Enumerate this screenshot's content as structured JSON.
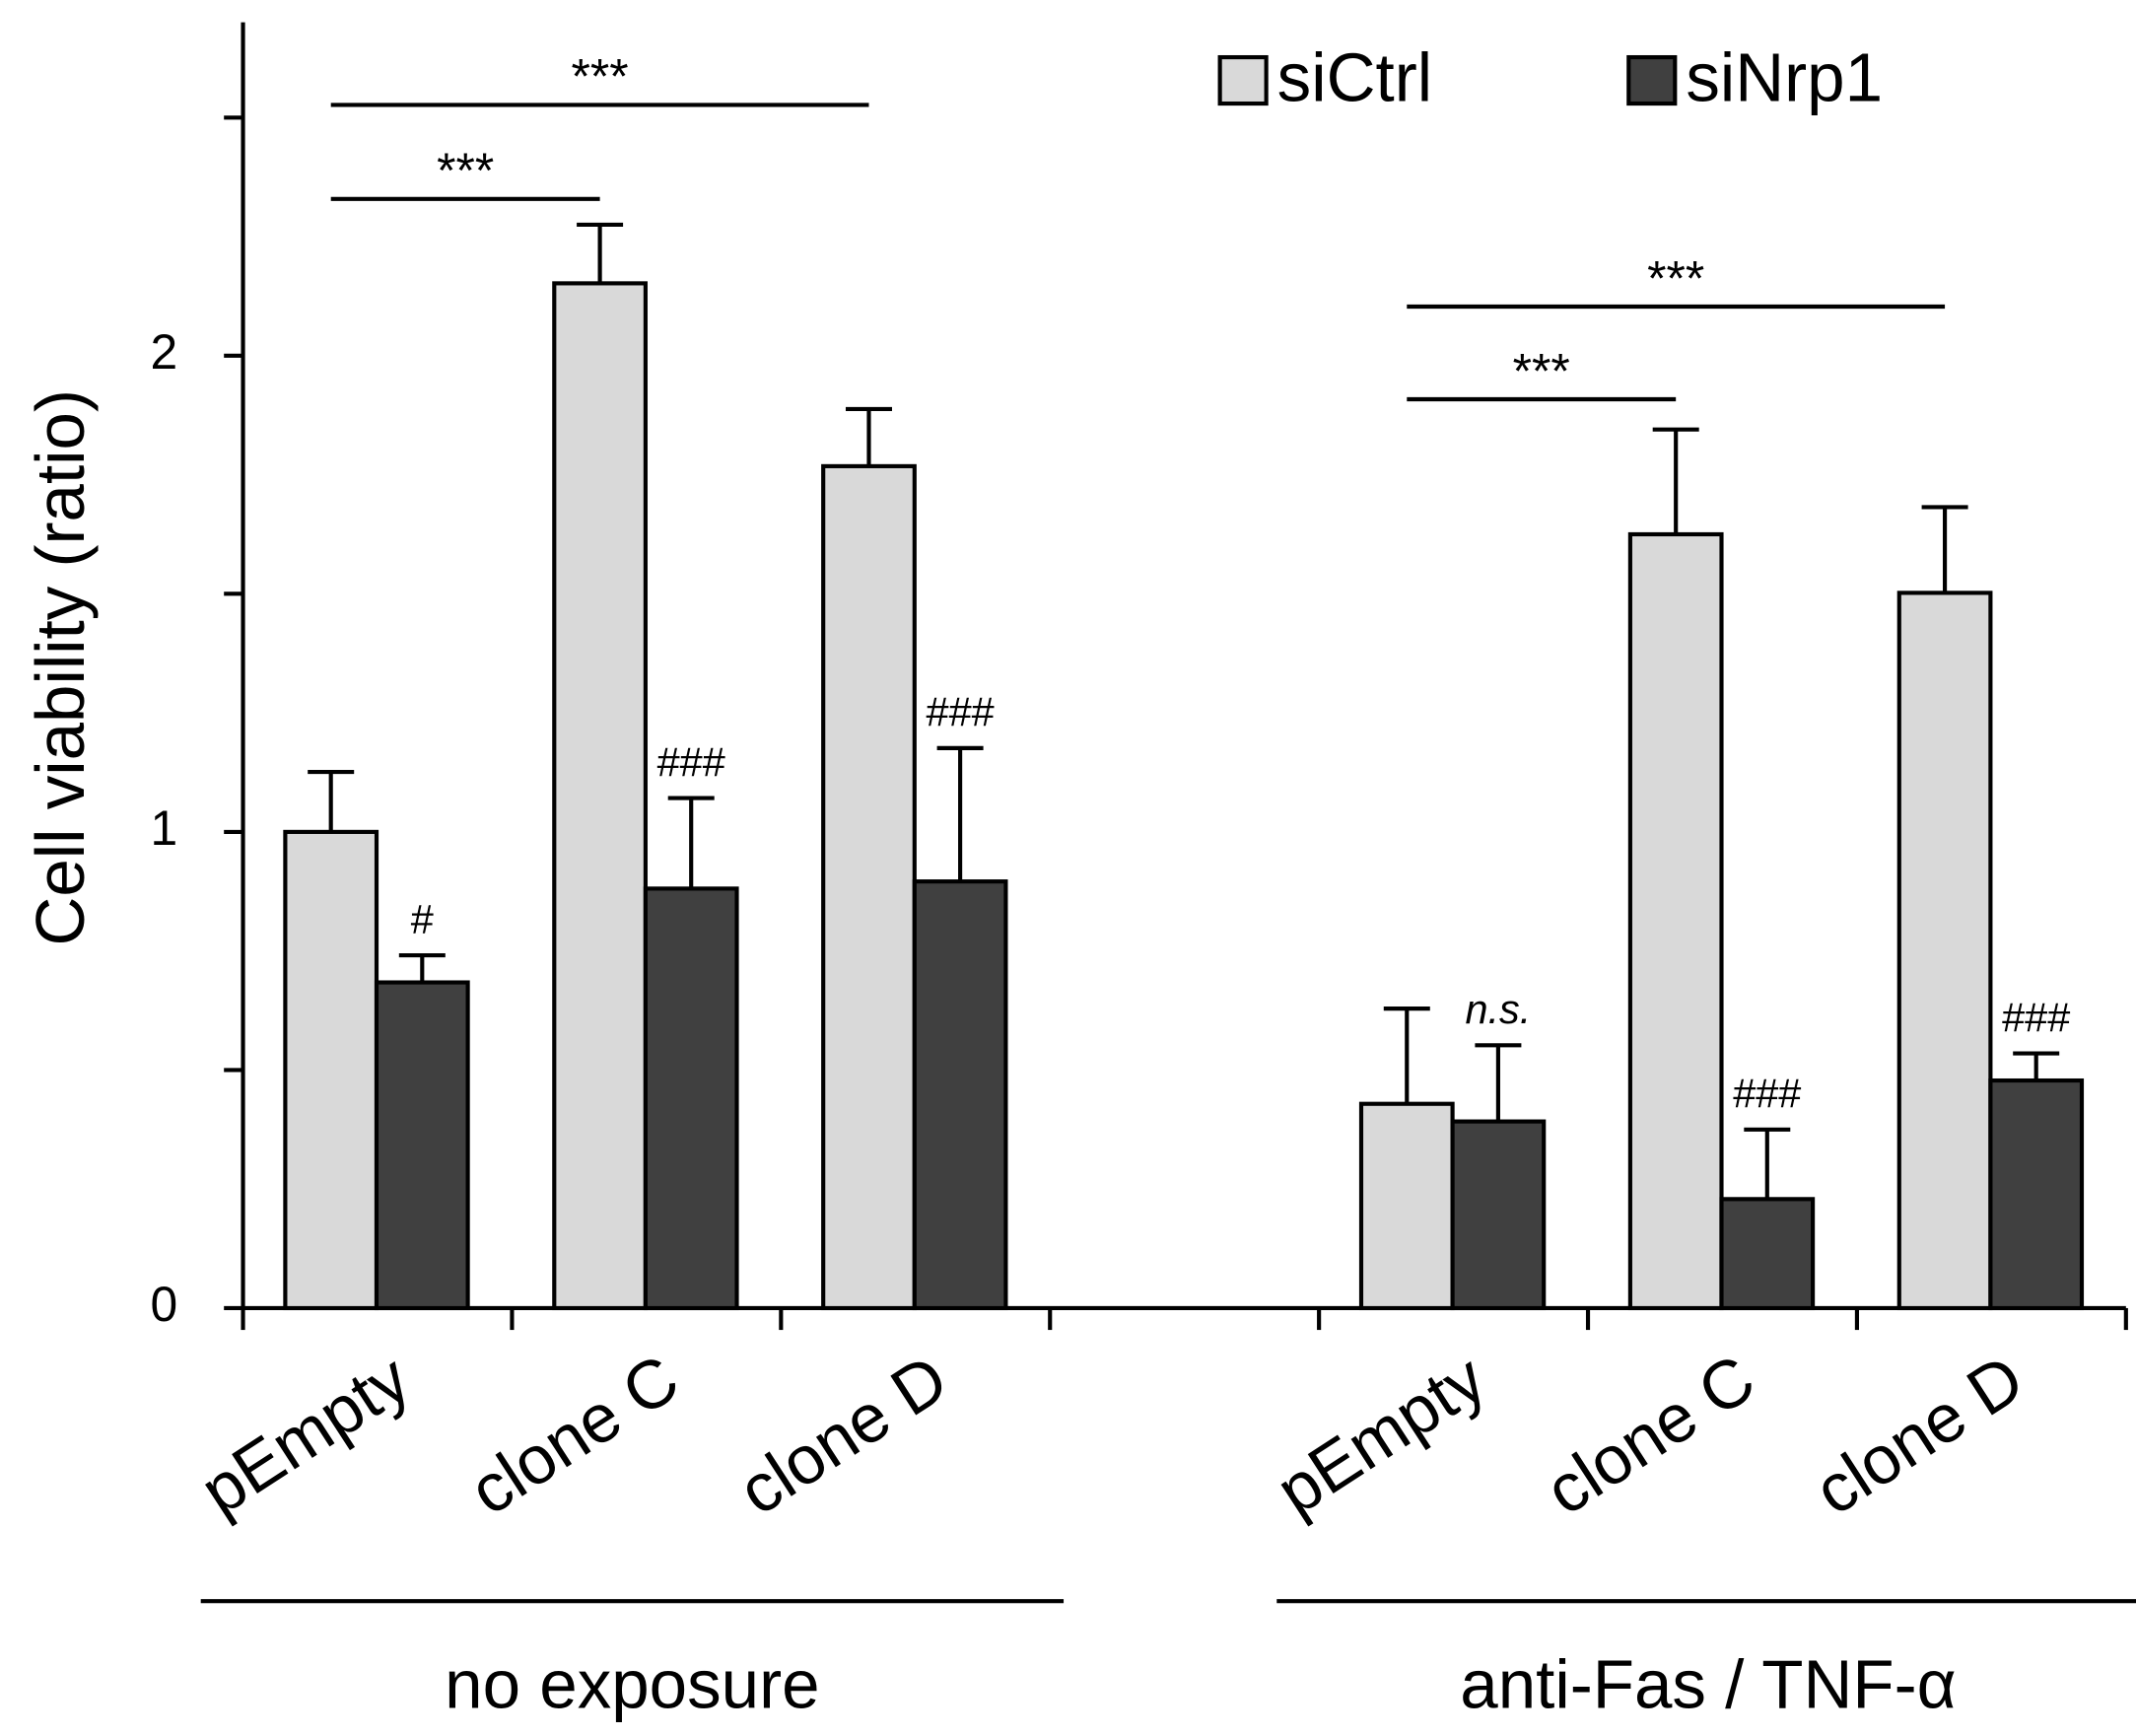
{
  "chart_data": {
    "type": "bar",
    "y_label": "Cell viability (ratio)",
    "categories": [
      "pEmpty",
      "clone C",
      "clone D",
      null,
      "pEmpty",
      "clone C",
      "clone D"
    ],
    "series": [
      {
        "name": "siCtrl",
        "color": "#d9d9d9",
        "values": [
          1.0,
          2.152,
          1.768,
          null,
          0.429,
          1.625,
          1.502
        ],
        "errors": [
          0.126,
          0.123,
          0.12,
          null,
          0.2,
          0.22,
          0.18
        ]
      },
      {
        "name": "siNrp1",
        "color": "#404040",
        "values": [
          0.684,
          0.881,
          0.896,
          null,
          0.392,
          0.229,
          0.478
        ],
        "errors": [
          0.057,
          0.19,
          0.28,
          null,
          0.16,
          0.146,
          0.057
        ],
        "markers": [
          "#",
          "###",
          "###",
          null,
          "n.s.",
          "###",
          "###"
        ]
      }
    ],
    "ylim": [
      0,
      2.7
    ],
    "yticks": [
      0,
      1,
      2
    ],
    "yminorticks": [
      0.5,
      1.5,
      2.5
    ],
    "brackets": [
      {
        "label": "***",
        "from": 0,
        "to": 2
      },
      {
        "label": "***",
        "from": 0,
        "to": 1
      },
      {
        "label": "***",
        "from": 4,
        "to": 6
      },
      {
        "label": "***",
        "from": 4,
        "to": 5
      }
    ],
    "groups": [
      {
        "label": "no exposure",
        "from": 0,
        "to": 2
      },
      {
        "label": "anti-Fas / TNF-α",
        "from": 4,
        "to": 6
      }
    ],
    "legend": "top-right"
  }
}
